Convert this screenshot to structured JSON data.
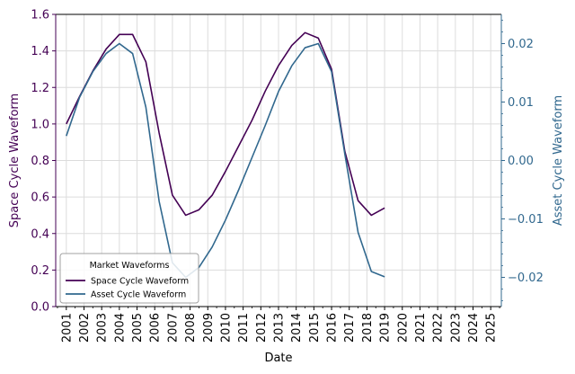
{
  "chart_data": {
    "type": "line",
    "title": "",
    "xlabel": "Date",
    "ylabel_left": "Space Cycle Waveform",
    "ylabel_right": "Asset Cycle Waveform",
    "x": [
      2001,
      2001.75,
      2002.5,
      2003.25,
      2004,
      2004.75,
      2005.5,
      2006.25,
      2007,
      2007.75,
      2008.5,
      2009.25,
      2010,
      2010.75,
      2011.5,
      2012.25,
      2013,
      2013.75,
      2014.5,
      2015.25,
      2016,
      2016.75,
      2017.5,
      2018.25,
      2019,
      2019.75,
      2020.5,
      2021.25,
      2022,
      2022.75,
      2023.5,
      2024.25,
      2025
    ],
    "x_ticks": [
      "2001",
      "2002",
      "2003",
      "2004",
      "2005",
      "2006",
      "2007",
      "2008",
      "2009",
      "2010",
      "2011",
      "2012",
      "2013",
      "2014",
      "2015",
      "2016",
      "2017",
      "2018",
      "2019",
      "2020",
      "2021",
      "2022",
      "2023",
      "2024",
      "2025"
    ],
    "xlim": [
      2000.4,
      2025.6
    ],
    "ylim_left": [
      0.0,
      1.6
    ],
    "ylim_right": [
      -0.025,
      0.025
    ],
    "y_ticks_left": [
      "0.0",
      "0.2",
      "0.4",
      "0.6",
      "0.8",
      "1.0",
      "1.2",
      "1.4",
      "1.6"
    ],
    "y_ticks_right": [
      "−0.02",
      "−0.01",
      "0.00",
      "0.01",
      "0.02"
    ],
    "series": [
      {
        "name": "Space Cycle Waveform",
        "axis": "left",
        "color": "#440154",
        "values": [
          1.0,
          1.15,
          1.29,
          1.41,
          1.49,
          1.49,
          1.34,
          0.95,
          0.61,
          0.5,
          0.53,
          0.61,
          0.74,
          0.88,
          1.02,
          1.18,
          1.32,
          1.43,
          1.5,
          1.47,
          1.3,
          0.85,
          0.58,
          0.5,
          0.54,
          null,
          null,
          null,
          null,
          null,
          null,
          null,
          null
        ]
      },
      {
        "name": "Asset Cycle Waveform",
        "axis": "right",
        "color": "#31688e",
        "values": [
          0.0042,
          0.0108,
          0.0152,
          0.0183,
          0.02,
          0.0183,
          0.0091,
          -0.007,
          -0.0175,
          -0.02,
          -0.0183,
          -0.0148,
          -0.0102,
          -0.005,
          0.0005,
          0.006,
          0.0118,
          0.0162,
          0.0193,
          0.02,
          0.0152,
          0.0011,
          -0.0123,
          -0.019,
          -0.0199,
          null,
          null,
          null,
          null,
          null,
          null,
          null,
          null
        ]
      }
    ],
    "legend": {
      "title": "Market Waveforms",
      "location": "lower-left"
    },
    "grid": true
  }
}
